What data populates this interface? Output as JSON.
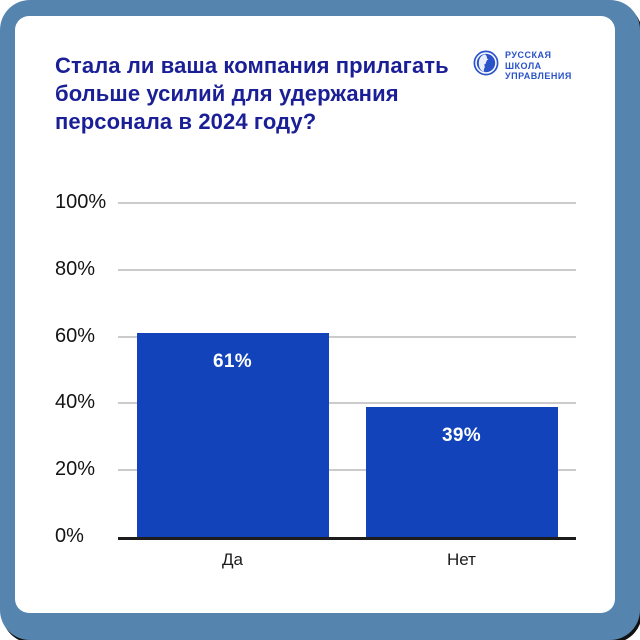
{
  "header": {
    "title_lines": [
      "Стала ли ваша компания прилагать",
      "больше усилий для удержания",
      "персонала в 2024 году?"
    ],
    "logo": {
      "lines": [
        "РУССКАЯ",
        "ШКОЛА",
        "УПРАВЛЕНИЯ"
      ],
      "icon": "globe-icon"
    }
  },
  "chart_data": {
    "type": "bar",
    "title": "Стала ли ваша компания прилагать больше усилий для удержания персонала в 2024 году?",
    "categories": [
      "Да",
      "Нет"
    ],
    "values": [
      61,
      39
    ],
    "value_labels": [
      "61%",
      "39%"
    ],
    "yticks": [
      100,
      80,
      60,
      40,
      20,
      0
    ],
    "ytick_labels": [
      "100%",
      "80%",
      "60%",
      "40%",
      "20%",
      "0%"
    ],
    "ylim": [
      0,
      100
    ],
    "grid": true,
    "legend": false,
    "xlabel": "",
    "ylabel": ""
  },
  "colors": {
    "frame": "#5584AF",
    "card_bg": "#FFFFFF",
    "title_text": "#1A1F96",
    "logo_blue": "#2A52C9",
    "bar_fill": "#1243BA",
    "bar_label": "#FFFFFF",
    "gridline": "#CBCBCB",
    "axis_line": "#1C1C1C",
    "tick_text": "#141414"
  }
}
